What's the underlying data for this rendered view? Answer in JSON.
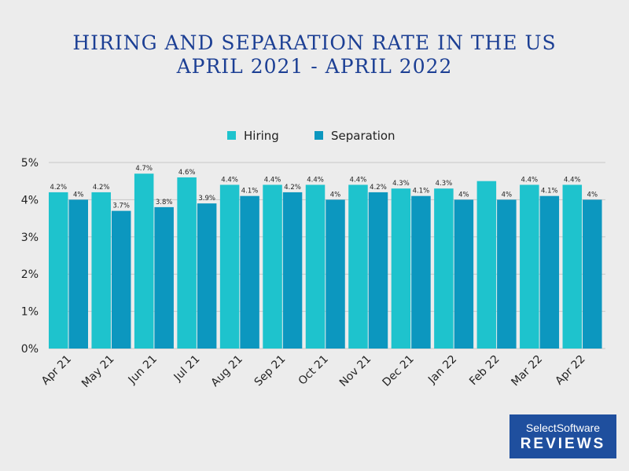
{
  "title": {
    "line1": "HIRING AND SEPARATION RATE IN THE US",
    "line2": "APRIL 2021 - APRIL 2022"
  },
  "colors": {
    "hiring": "#1ec3cd",
    "separation": "#0c97bf",
    "title": "#1c3f94",
    "grid": "#c8c8c8"
  },
  "chart_data": {
    "type": "bar",
    "title": "HIRING AND SEPARATION RATE IN THE US APRIL 2021 - APRIL 2022",
    "categories": [
      "Apr 21",
      "May 21",
      "Jun 21",
      "Jul 21",
      "Aug 21",
      "Sep 21",
      "Oct 21",
      "Nov 21",
      "Dec 21",
      "Jan 22",
      "Feb 22",
      "Mar 22",
      "Apr 22"
    ],
    "series": [
      {
        "name": "Hiring",
        "values": [
          4.2,
          4.2,
          4.7,
          4.6,
          4.4,
          4.4,
          4.4,
          4.4,
          4.3,
          4.3,
          4.5,
          4.4,
          4.4
        ],
        "labels": [
          "4.2%",
          "4.2%",
          "4.7%",
          "4.6%",
          "4.4%",
          "4.4%",
          "4.4%",
          "4.4%",
          "4.3%",
          "4.3%",
          "",
          "4.4%",
          "4.4%"
        ]
      },
      {
        "name": "Separation",
        "values": [
          4.0,
          3.7,
          3.8,
          3.9,
          4.1,
          4.2,
          4.0,
          4.2,
          4.1,
          4.0,
          4.0,
          4.1,
          4.0
        ],
        "labels": [
          "4%",
          "3.7%",
          "3.8%",
          "3.9%",
          "4.1%",
          "4.2%",
          "4%",
          "4.2%",
          "4.1%",
          "4%",
          "4%",
          "4.1%",
          "4%"
        ]
      }
    ],
    "y_ticks": [
      "0%",
      "1%",
      "2%",
      "3%",
      "4%",
      "5%"
    ],
    "ylim": [
      0,
      5
    ],
    "xlabel": "",
    "ylabel": "",
    "legend_position": "top-center",
    "grid": true
  },
  "badge": {
    "line1": "SelectSoftware",
    "line2": "REVIEWS"
  }
}
